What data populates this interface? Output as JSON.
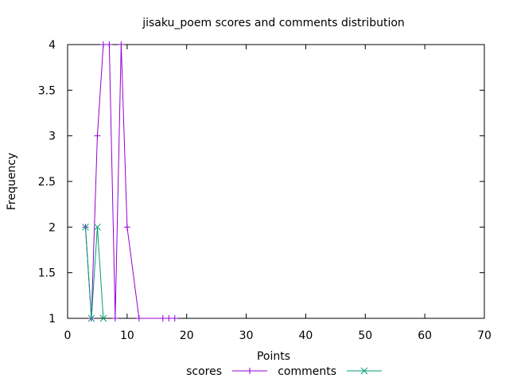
{
  "chart_data": {
    "type": "line",
    "title": "jisaku_poem scores and comments distribution",
    "xlabel": "Points",
    "ylabel": "Frequency",
    "xlim": [
      0,
      70
    ],
    "ylim": [
      1,
      4
    ],
    "xticks": [
      "0",
      "10",
      "20",
      "30",
      "40",
      "50",
      "60",
      "70"
    ],
    "yticks": [
      "1",
      "1.5",
      "2",
      "2.5",
      "3",
      "3.5",
      "4"
    ],
    "grid": false,
    "legend_position": "bottom-center",
    "series": [
      {
        "name": "scores",
        "color": "#9400d3",
        "marker": "plus",
        "x": [
          3,
          4,
          5,
          6,
          7,
          8,
          9,
          10,
          12,
          16,
          17,
          18
        ],
        "y": [
          2,
          1,
          3,
          4,
          4,
          1,
          4,
          2,
          1,
          1,
          1,
          1
        ]
      },
      {
        "name": "comments",
        "color": "#009e73",
        "marker": "cross",
        "x": [
          3,
          4,
          5,
          6
        ],
        "y": [
          2,
          1,
          2,
          1
        ]
      }
    ]
  }
}
